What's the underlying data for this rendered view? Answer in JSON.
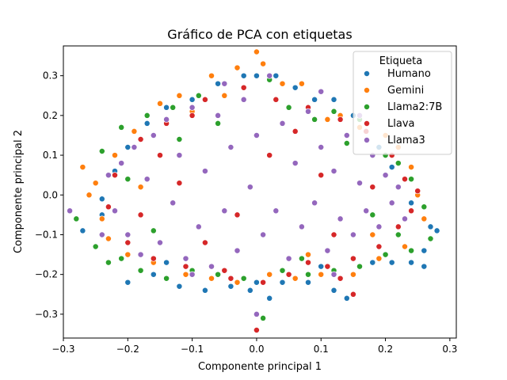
{
  "chart_data": {
    "type": "scatter",
    "title": "Gráfico de PCA con etiquetas",
    "xlabel": "Componente principal 1",
    "ylabel": "Componente principal 2",
    "xlim": [
      -0.3,
      0.31
    ],
    "ylim": [
      -0.36,
      0.375
    ],
    "xticks": [
      -0.3,
      -0.2,
      -0.1,
      0.0,
      0.1,
      0.2,
      0.3
    ],
    "xtick_labels": [
      "−0.3",
      "−0.2",
      "−0.1",
      "0.0",
      "0.1",
      "0.2",
      "0.3"
    ],
    "yticks": [
      -0.3,
      -0.2,
      -0.1,
      0.0,
      0.1,
      0.2,
      0.3
    ],
    "ytick_labels": [
      "−0.3",
      "−0.2",
      "−0.1",
      "0.0",
      "0.1",
      "0.2",
      "0.3"
    ],
    "grid": false,
    "legend": {
      "title": "Etiqueta",
      "placement": "top-right"
    },
    "series": [
      {
        "name": "Humano",
        "color": "#1f77b4",
        "points": [
          [
            -0.27,
            -0.09
          ],
          [
            -0.24,
            -0.05
          ],
          [
            -0.2,
            -0.22
          ],
          [
            -0.16,
            -0.2
          ],
          [
            -0.12,
            -0.23
          ],
          [
            -0.08,
            -0.24
          ],
          [
            -0.04,
            -0.23
          ],
          [
            0.0,
            -0.22
          ],
          [
            0.04,
            -0.22
          ],
          [
            0.08,
            -0.22
          ],
          [
            0.12,
            -0.24
          ],
          [
            0.14,
            -0.26
          ],
          [
            0.18,
            -0.17
          ],
          [
            0.21,
            -0.17
          ],
          [
            0.24,
            -0.17
          ],
          [
            0.26,
            -0.14
          ],
          [
            0.27,
            -0.08
          ],
          [
            0.28,
            -0.09
          ],
          [
            0.24,
            -0.02
          ],
          [
            0.21,
            0.07
          ],
          [
            0.19,
            0.12
          ],
          [
            0.15,
            0.2
          ],
          [
            0.12,
            0.24
          ],
          [
            0.09,
            0.24
          ],
          [
            0.06,
            0.27
          ],
          [
            0.03,
            0.3
          ],
          [
            0.0,
            0.3
          ],
          [
            -0.02,
            0.3
          ],
          [
            -0.06,
            0.28
          ],
          [
            -0.1,
            0.24
          ],
          [
            -0.14,
            0.22
          ],
          [
            -0.17,
            0.18
          ],
          [
            -0.2,
            0.12
          ],
          [
            -0.22,
            0.06
          ],
          [
            -0.24,
            -0.01
          ],
          [
            0.02,
            -0.26
          ],
          [
            -0.01,
            -0.24
          ],
          [
            0.1,
            -0.18
          ],
          [
            -0.14,
            -0.17
          ],
          [
            0.26,
            -0.18
          ]
        ]
      },
      {
        "name": "Gemini",
        "color": "#ff7f0e",
        "points": [
          [
            -0.27,
            0.07
          ],
          [
            -0.26,
            0.0
          ],
          [
            -0.25,
            0.03
          ],
          [
            -0.24,
            -0.06
          ],
          [
            -0.22,
            0.1
          ],
          [
            -0.19,
            0.16
          ],
          [
            -0.15,
            0.23
          ],
          [
            -0.12,
            0.25
          ],
          [
            -0.07,
            0.3
          ],
          [
            -0.03,
            0.32
          ],
          [
            0.0,
            0.36
          ],
          [
            0.01,
            0.33
          ],
          [
            0.04,
            0.28
          ],
          [
            0.07,
            0.28
          ],
          [
            0.1,
            0.26
          ],
          [
            0.13,
            0.2
          ],
          [
            0.16,
            0.17
          ],
          [
            0.2,
            0.15
          ],
          [
            0.22,
            0.12
          ],
          [
            0.24,
            0.07
          ],
          [
            0.25,
            0.0
          ],
          [
            0.26,
            -0.06
          ],
          [
            0.23,
            -0.13
          ],
          [
            0.19,
            -0.16
          ],
          [
            0.15,
            -0.2
          ],
          [
            0.1,
            -0.2
          ],
          [
            0.06,
            -0.21
          ],
          [
            0.02,
            -0.2
          ],
          [
            -0.03,
            -0.22
          ],
          [
            -0.07,
            -0.21
          ],
          [
            -0.11,
            -0.2
          ],
          [
            -0.16,
            -0.17
          ],
          [
            -0.2,
            -0.15
          ],
          [
            -0.23,
            -0.11
          ],
          [
            -0.18,
            0.02
          ],
          [
            0.11,
            0.19
          ],
          [
            -0.1,
            0.21
          ],
          [
            0.08,
            -0.15
          ],
          [
            -0.05,
            0.25
          ],
          [
            0.18,
            -0.1
          ]
        ]
      },
      {
        "name": "Llama2:7B",
        "color": "#2ca02c",
        "points": [
          [
            -0.28,
            -0.06
          ],
          [
            -0.25,
            -0.13
          ],
          [
            -0.23,
            -0.17
          ],
          [
            -0.24,
            0.11
          ],
          [
            -0.21,
            0.17
          ],
          [
            -0.17,
            0.2
          ],
          [
            -0.13,
            0.22
          ],
          [
            -0.09,
            0.25
          ],
          [
            -0.05,
            0.28
          ],
          [
            0.02,
            0.29
          ],
          [
            0.05,
            0.22
          ],
          [
            0.09,
            0.19
          ],
          [
            0.12,
            0.21
          ],
          [
            0.16,
            0.19
          ],
          [
            0.2,
            0.1
          ],
          [
            0.22,
            0.08
          ],
          [
            0.24,
            0.04
          ],
          [
            0.26,
            -0.03
          ],
          [
            0.27,
            -0.11
          ],
          [
            0.24,
            -0.14
          ],
          [
            0.2,
            -0.15
          ],
          [
            0.16,
            -0.18
          ],
          [
            0.12,
            -0.19
          ],
          [
            0.08,
            -0.2
          ],
          [
            0.04,
            -0.19
          ],
          [
            0.01,
            -0.31
          ],
          [
            -0.02,
            -0.21
          ],
          [
            -0.06,
            -0.2
          ],
          [
            -0.1,
            -0.19
          ],
          [
            -0.14,
            -0.21
          ],
          [
            -0.18,
            -0.19
          ],
          [
            -0.21,
            -0.16
          ],
          [
            -0.2,
            0.04
          ],
          [
            -0.16,
            -0.09
          ],
          [
            0.14,
            0.13
          ],
          [
            0.18,
            -0.05
          ],
          [
            -0.06,
            0.18
          ],
          [
            0.07,
            -0.16
          ],
          [
            -0.12,
            0.14
          ],
          [
            0.22,
            -0.1
          ]
        ]
      },
      {
        "name": "Llava",
        "color": "#d62728",
        "points": [
          [
            -0.23,
            -0.03
          ],
          [
            -0.22,
            0.05
          ],
          [
            -0.2,
            -0.12
          ],
          [
            -0.18,
            0.14
          ],
          [
            -0.16,
            -0.16
          ],
          [
            -0.14,
            0.18
          ],
          [
            -0.11,
            -0.18
          ],
          [
            -0.08,
            0.24
          ],
          [
            -0.05,
            -0.19
          ],
          [
            -0.02,
            0.27
          ],
          [
            0.0,
            -0.34
          ],
          [
            0.01,
            -0.22
          ],
          [
            0.03,
            0.24
          ],
          [
            0.05,
            -0.2
          ],
          [
            0.08,
            0.22
          ],
          [
            0.11,
            -0.18
          ],
          [
            0.13,
            0.19
          ],
          [
            0.15,
            -0.16
          ],
          [
            0.17,
            0.16
          ],
          [
            0.19,
            -0.13
          ],
          [
            0.21,
            0.1
          ],
          [
            0.22,
            -0.08
          ],
          [
            0.23,
            0.04
          ],
          [
            0.24,
            -0.04
          ],
          [
            0.25,
            0.01
          ],
          [
            0.15,
            -0.25
          ],
          [
            0.13,
            -0.21
          ],
          [
            -0.04,
            -0.21
          ],
          [
            0.08,
            -0.17
          ],
          [
            -0.1,
            0.2
          ],
          [
            0.06,
            0.16
          ],
          [
            -0.15,
            0.1
          ],
          [
            0.12,
            -0.1
          ],
          [
            -0.08,
            -0.12
          ],
          [
            0.02,
            0.1
          ],
          [
            -0.12,
            0.03
          ],
          [
            0.1,
            0.05
          ],
          [
            -0.03,
            -0.05
          ],
          [
            0.18,
            0.02
          ],
          [
            -0.18,
            -0.05
          ]
        ]
      },
      {
        "name": "Llama3",
        "color": "#9467bd",
        "points": [
          [
            -0.29,
            -0.04
          ],
          [
            -0.24,
            -0.1
          ],
          [
            -0.23,
            0.05
          ],
          [
            -0.22,
            -0.04
          ],
          [
            -0.21,
            0.08
          ],
          [
            -0.2,
            -0.1
          ],
          [
            -0.19,
            0.12
          ],
          [
            -0.18,
            -0.15
          ],
          [
            -0.17,
            0.04
          ],
          [
            -0.16,
            0.15
          ],
          [
            -0.15,
            -0.12
          ],
          [
            -0.14,
            0.19
          ],
          [
            -0.13,
            -0.02
          ],
          [
            -0.12,
            0.1
          ],
          [
            -0.11,
            -0.16
          ],
          [
            -0.1,
            0.22
          ],
          [
            -0.09,
            -0.08
          ],
          [
            -0.08,
            0.06
          ],
          [
            -0.07,
            -0.18
          ],
          [
            -0.06,
            0.2
          ],
          [
            -0.05,
            -0.04
          ],
          [
            -0.04,
            0.12
          ],
          [
            -0.03,
            -0.14
          ],
          [
            -0.02,
            0.24
          ],
          [
            -0.01,
            0.02
          ],
          [
            0.0,
            -0.3
          ],
          [
            0.0,
            0.15
          ],
          [
            0.01,
            -0.1
          ],
          [
            0.02,
            0.3
          ],
          [
            0.03,
            -0.04
          ],
          [
            0.04,
            0.18
          ],
          [
            0.05,
            -0.16
          ],
          [
            0.06,
            0.08
          ],
          [
            0.07,
            -0.08
          ],
          [
            0.08,
            0.21
          ],
          [
            0.09,
            -0.02
          ],
          [
            0.1,
            0.12
          ],
          [
            0.11,
            -0.14
          ],
          [
            0.12,
            0.06
          ],
          [
            0.13,
            -0.06
          ],
          [
            0.14,
            0.15
          ],
          [
            0.15,
            -0.1
          ],
          [
            0.16,
            0.03
          ],
          [
            0.17,
            -0.04
          ],
          [
            0.18,
            0.1
          ],
          [
            0.19,
            -0.08
          ],
          [
            0.2,
            0.05
          ],
          [
            0.21,
            -0.02
          ],
          [
            0.22,
            0.02
          ],
          [
            0.23,
            -0.06
          ],
          [
            0.1,
            0.26
          ],
          [
            -0.05,
            0.28
          ],
          [
            0.12,
            -0.2
          ],
          [
            -0.1,
            -0.2
          ],
          [
            0.16,
            0.2
          ]
        ]
      }
    ]
  }
}
